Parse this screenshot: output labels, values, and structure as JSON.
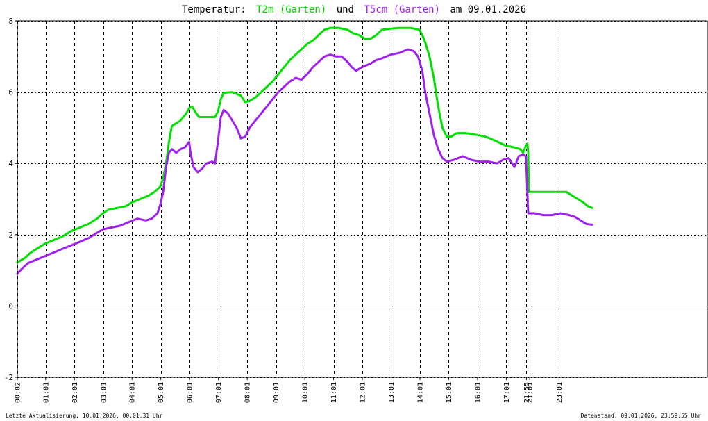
{
  "title": {
    "prefix": "Temperatur:",
    "series1": "T2m (Garten)",
    "joiner": "und",
    "series2": "T5cm (Garten)",
    "suffix": "am 09.01.2026"
  },
  "footer": {
    "left": "Letzte Aktualisierung: 10.01.2026, 00:01:31 Uhr",
    "right": "Datenstand: 09.01.2026, 23:59:55 Uhr"
  },
  "chart_data": {
    "type": "line",
    "title": "Temperatur: T2m (Garten) und T5cm (Garten) am 09.01.2026",
    "xlabel": "",
    "ylabel": "",
    "xlim": [
      0.033,
      24
    ],
    "ylim": [
      -2,
      8
    ],
    "yticks": [
      -2,
      0,
      2,
      4,
      6,
      8
    ],
    "xticks": [
      {
        "label": "00:02",
        "x": 0.033
      },
      {
        "label": "01:01",
        "x": 1.017
      },
      {
        "label": "02:01",
        "x": 2.017
      },
      {
        "label": "03:01",
        "x": 3.017
      },
      {
        "label": "04:01",
        "x": 4.017
      },
      {
        "label": "05:01",
        "x": 5.017
      },
      {
        "label": "06:01",
        "x": 6.017
      },
      {
        "label": "07:01",
        "x": 7.017
      },
      {
        "label": "08:01",
        "x": 8.017
      },
      {
        "label": "09:01",
        "x": 9.017
      },
      {
        "label": "10:01",
        "x": 10.017
      },
      {
        "label": "11:01",
        "x": 11.017
      },
      {
        "label": "12:01",
        "x": 12.017
      },
      {
        "label": "13:01",
        "x": 13.017
      },
      {
        "label": "14:01",
        "x": 14.017
      },
      {
        "label": "15:01",
        "x": 15.017
      },
      {
        "label": "16:01",
        "x": 16.017
      },
      {
        "label": "17:01",
        "x": 17.017
      },
      {
        "label": "21:55",
        "x": 17.717
      },
      {
        "label": "21:01",
        "x": 17.83
      },
      {
        "label": "23:01",
        "x": 18.85
      }
    ],
    "grid": true,
    "legend": "none",
    "series": [
      {
        "color": "#00e000",
        "points": [
          [
            0.03,
            1.22
          ],
          [
            0.3,
            1.35
          ],
          [
            0.5,
            1.5
          ],
          [
            0.7,
            1.6
          ],
          [
            1.0,
            1.75
          ],
          [
            1.3,
            1.85
          ],
          [
            1.6,
            1.95
          ],
          [
            1.9,
            2.1
          ],
          [
            2.2,
            2.2
          ],
          [
            2.5,
            2.3
          ],
          [
            2.8,
            2.45
          ],
          [
            3.0,
            2.6
          ],
          [
            3.2,
            2.7
          ],
          [
            3.5,
            2.75
          ],
          [
            3.8,
            2.8
          ],
          [
            4.0,
            2.9
          ],
          [
            4.3,
            3.0
          ],
          [
            4.6,
            3.1
          ],
          [
            4.8,
            3.2
          ],
          [
            5.0,
            3.35
          ],
          [
            5.1,
            3.6
          ],
          [
            5.2,
            4.0
          ],
          [
            5.3,
            4.6
          ],
          [
            5.4,
            5.05
          ],
          [
            5.5,
            5.1
          ],
          [
            5.7,
            5.2
          ],
          [
            5.9,
            5.4
          ],
          [
            6.0,
            5.55
          ],
          [
            6.1,
            5.6
          ],
          [
            6.25,
            5.4
          ],
          [
            6.35,
            5.3
          ],
          [
            6.6,
            5.3
          ],
          [
            6.9,
            5.3
          ],
          [
            7.0,
            5.45
          ],
          [
            7.1,
            5.8
          ],
          [
            7.2,
            5.98
          ],
          [
            7.5,
            6.0
          ],
          [
            7.8,
            5.9
          ],
          [
            7.95,
            5.72
          ],
          [
            8.1,
            5.75
          ],
          [
            8.3,
            5.85
          ],
          [
            8.5,
            6.0
          ],
          [
            8.7,
            6.15
          ],
          [
            8.9,
            6.3
          ],
          [
            9.1,
            6.5
          ],
          [
            9.3,
            6.7
          ],
          [
            9.5,
            6.9
          ],
          [
            9.7,
            7.05
          ],
          [
            9.9,
            7.2
          ],
          [
            10.1,
            7.35
          ],
          [
            10.3,
            7.45
          ],
          [
            10.5,
            7.6
          ],
          [
            10.7,
            7.75
          ],
          [
            10.9,
            7.8
          ],
          [
            11.2,
            7.8
          ],
          [
            11.5,
            7.75
          ],
          [
            11.7,
            7.65
          ],
          [
            11.9,
            7.6
          ],
          [
            12.1,
            7.5
          ],
          [
            12.3,
            7.5
          ],
          [
            12.5,
            7.6
          ],
          [
            12.7,
            7.75
          ],
          [
            13.0,
            7.78
          ],
          [
            13.3,
            7.8
          ],
          [
            13.7,
            7.8
          ],
          [
            14.0,
            7.75
          ],
          [
            14.1,
            7.6
          ],
          [
            14.2,
            7.4
          ],
          [
            14.35,
            7.0
          ],
          [
            14.5,
            6.4
          ],
          [
            14.65,
            5.6
          ],
          [
            14.8,
            5.0
          ],
          [
            14.95,
            4.75
          ],
          [
            15.1,
            4.75
          ],
          [
            15.3,
            4.85
          ],
          [
            15.6,
            4.85
          ],
          [
            16.0,
            4.8
          ],
          [
            16.3,
            4.75
          ],
          [
            16.6,
            4.65
          ],
          [
            17.0,
            4.5
          ],
          [
            17.3,
            4.45
          ],
          [
            17.5,
            4.4
          ],
          [
            17.6,
            4.3
          ],
          [
            17.7,
            4.5
          ],
          [
            17.75,
            4.55
          ],
          [
            17.78,
            4.3
          ],
          [
            17.8,
            3.2
          ],
          [
            18.0,
            3.2
          ],
          [
            18.3,
            3.2
          ],
          [
            18.6,
            3.2
          ],
          [
            18.9,
            3.2
          ],
          [
            19.1,
            3.2
          ],
          [
            19.3,
            3.1
          ],
          [
            19.5,
            3.0
          ],
          [
            19.7,
            2.9
          ],
          [
            19.85,
            2.8
          ],
          [
            20.0,
            2.75
          ]
        ]
      },
      {
        "color": "#a020f0",
        "points": [
          [
            0.03,
            0.9
          ],
          [
            0.2,
            1.05
          ],
          [
            0.4,
            1.2
          ],
          [
            0.7,
            1.3
          ],
          [
            1.0,
            1.4
          ],
          [
            1.3,
            1.5
          ],
          [
            1.6,
            1.6
          ],
          [
            1.9,
            1.7
          ],
          [
            2.2,
            1.8
          ],
          [
            2.5,
            1.9
          ],
          [
            2.8,
            2.05
          ],
          [
            3.0,
            2.15
          ],
          [
            3.3,
            2.2
          ],
          [
            3.6,
            2.25
          ],
          [
            3.9,
            2.35
          ],
          [
            4.2,
            2.45
          ],
          [
            4.5,
            2.4
          ],
          [
            4.7,
            2.45
          ],
          [
            4.9,
            2.6
          ],
          [
            5.0,
            2.85
          ],
          [
            5.1,
            3.2
          ],
          [
            5.2,
            3.9
          ],
          [
            5.3,
            4.3
          ],
          [
            5.4,
            4.4
          ],
          [
            5.55,
            4.3
          ],
          [
            5.7,
            4.4
          ],
          [
            5.85,
            4.45
          ],
          [
            6.0,
            4.6
          ],
          [
            6.05,
            4.3
          ],
          [
            6.15,
            3.9
          ],
          [
            6.3,
            3.75
          ],
          [
            6.45,
            3.85
          ],
          [
            6.6,
            4.0
          ],
          [
            6.8,
            4.05
          ],
          [
            6.9,
            4.0
          ],
          [
            7.0,
            4.6
          ],
          [
            7.1,
            5.3
          ],
          [
            7.2,
            5.5
          ],
          [
            7.35,
            5.4
          ],
          [
            7.5,
            5.2
          ],
          [
            7.65,
            5.0
          ],
          [
            7.8,
            4.7
          ],
          [
            7.95,
            4.75
          ],
          [
            8.1,
            5.0
          ],
          [
            8.3,
            5.2
          ],
          [
            8.5,
            5.4
          ],
          [
            8.7,
            5.6
          ],
          [
            8.9,
            5.8
          ],
          [
            9.1,
            6.0
          ],
          [
            9.3,
            6.15
          ],
          [
            9.5,
            6.3
          ],
          [
            9.7,
            6.4
          ],
          [
            9.9,
            6.35
          ],
          [
            10.1,
            6.5
          ],
          [
            10.3,
            6.7
          ],
          [
            10.5,
            6.85
          ],
          [
            10.7,
            7.0
          ],
          [
            10.9,
            7.05
          ],
          [
            11.1,
            7.0
          ],
          [
            11.3,
            7.0
          ],
          [
            11.5,
            6.85
          ],
          [
            11.65,
            6.7
          ],
          [
            11.8,
            6.6
          ],
          [
            12.0,
            6.7
          ],
          [
            12.3,
            6.8
          ],
          [
            12.5,
            6.9
          ],
          [
            12.7,
            6.95
          ],
          [
            13.0,
            7.05
          ],
          [
            13.3,
            7.1
          ],
          [
            13.6,
            7.2
          ],
          [
            13.8,
            7.15
          ],
          [
            13.95,
            7.0
          ],
          [
            14.1,
            6.6
          ],
          [
            14.2,
            6.0
          ],
          [
            14.35,
            5.4
          ],
          [
            14.5,
            4.8
          ],
          [
            14.65,
            4.4
          ],
          [
            14.8,
            4.15
          ],
          [
            14.95,
            4.05
          ],
          [
            15.2,
            4.1
          ],
          [
            15.5,
            4.2
          ],
          [
            15.8,
            4.1
          ],
          [
            16.1,
            4.05
          ],
          [
            16.4,
            4.05
          ],
          [
            16.7,
            4.0
          ],
          [
            16.9,
            4.1
          ],
          [
            17.1,
            4.15
          ],
          [
            17.3,
            3.9
          ],
          [
            17.45,
            4.2
          ],
          [
            17.6,
            4.25
          ],
          [
            17.7,
            4.2
          ],
          [
            17.78,
            2.6
          ],
          [
            18.0,
            2.6
          ],
          [
            18.3,
            2.55
          ],
          [
            18.6,
            2.55
          ],
          [
            18.9,
            2.6
          ],
          [
            19.2,
            2.55
          ],
          [
            19.4,
            2.5
          ],
          [
            19.6,
            2.4
          ],
          [
            19.8,
            2.3
          ],
          [
            20.0,
            2.28
          ]
        ]
      }
    ]
  },
  "colors": {
    "t2m": "#00e000",
    "t5cm": "#a020f0",
    "background": "#ffffff",
    "grid": "#000000"
  }
}
